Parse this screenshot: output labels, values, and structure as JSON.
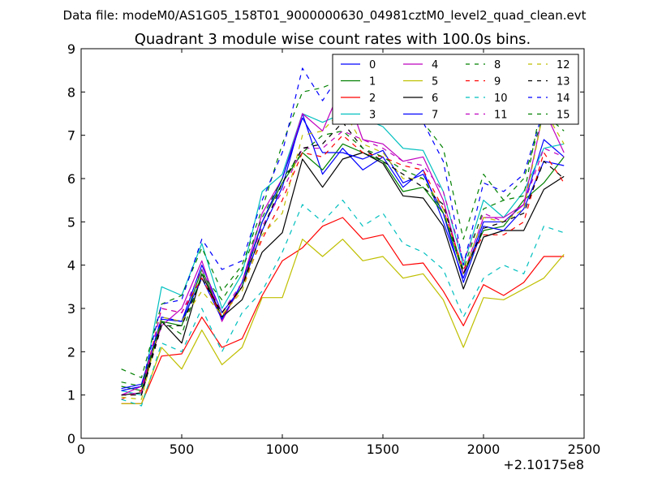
{
  "suptitle": "Data file: modeM0/AS1G05_158T01_9000000630_04981cztM0_level2_quad_clean.evt",
  "chart_data": {
    "type": "line",
    "title": "Quadrant 3 module wise count rates with 100.0s bins.",
    "xlabel": "",
    "ylabel": "",
    "x_offset_label": "+2.10175e8",
    "xlim": [
      0,
      2500
    ],
    "ylim": [
      0,
      9
    ],
    "x_ticks": [
      0,
      500,
      1000,
      1500,
      2000,
      2500
    ],
    "y_ticks": [
      0,
      1,
      2,
      3,
      4,
      5,
      6,
      7,
      8,
      9
    ],
    "x_tick_labels": [
      "0",
      "500",
      "1000",
      "1500",
      "2000",
      "2500"
    ],
    "y_tick_labels": [
      "0",
      "1",
      "2",
      "3",
      "4",
      "5",
      "6",
      "7",
      "8",
      "9"
    ],
    "legend_position": "top-right",
    "legend_columns": 4,
    "x": [
      200,
      300,
      400,
      500,
      600,
      700,
      800,
      900,
      1000,
      1100,
      1200,
      1300,
      1400,
      1500,
      1600,
      1700,
      1800,
      1900,
      2000,
      2100,
      2200,
      2300,
      2400
    ],
    "series": [
      {
        "name": "0",
        "color": "#0000ff",
        "dash": "solid",
        "values": [
          1.1,
          1.2,
          2.8,
          2.7,
          4.0,
          2.9,
          3.5,
          4.8,
          5.8,
          7.5,
          6.1,
          6.7,
          6.2,
          6.5,
          5.8,
          6.2,
          5.0,
          3.7,
          5.0,
          5.0,
          5.4,
          6.9,
          6.5
        ]
      },
      {
        "name": "1",
        "color": "#008000",
        "dash": "solid",
        "values": [
          1.2,
          1.1,
          2.7,
          2.6,
          3.9,
          2.8,
          3.5,
          5.0,
          5.9,
          6.6,
          6.2,
          6.8,
          6.6,
          6.4,
          5.7,
          5.8,
          5.2,
          3.8,
          4.8,
          4.9,
          5.5,
          5.9,
          6.5
        ]
      },
      {
        "name": "2",
        "color": "#ff0000",
        "dash": "solid",
        "values": [
          0.8,
          0.8,
          1.9,
          1.95,
          2.8,
          2.1,
          2.3,
          3.3,
          4.1,
          4.4,
          4.9,
          5.1,
          4.6,
          4.7,
          4.0,
          4.05,
          3.4,
          2.6,
          3.55,
          3.3,
          3.6,
          4.2,
          4.2
        ]
      },
      {
        "name": "3",
        "color": "#00bfbf",
        "dash": "solid",
        "values": [
          1.1,
          1.0,
          3.5,
          3.3,
          4.5,
          3.0,
          3.8,
          5.7,
          6.1,
          7.5,
          7.3,
          7.5,
          7.4,
          7.2,
          6.7,
          6.65,
          5.7,
          4.0,
          5.5,
          5.1,
          5.7,
          6.7,
          6.8
        ]
      },
      {
        "name": "4",
        "color": "#bf00bf",
        "dash": "solid",
        "values": [
          1.0,
          1.2,
          2.6,
          3.0,
          4.1,
          2.7,
          3.6,
          5.2,
          6.0,
          7.5,
          7.1,
          8.2,
          6.9,
          6.8,
          6.4,
          6.5,
          5.5,
          3.8,
          5.1,
          5.1,
          5.4,
          7.6,
          6.6
        ]
      },
      {
        "name": "5",
        "color": "#bfbf00",
        "dash": "solid",
        "values": [
          0.8,
          0.8,
          2.1,
          1.6,
          2.5,
          1.7,
          2.1,
          3.25,
          3.25,
          4.6,
          4.2,
          4.6,
          4.1,
          4.2,
          3.7,
          3.8,
          3.2,
          2.1,
          3.25,
          3.2,
          3.45,
          3.7,
          4.25
        ]
      },
      {
        "name": "6",
        "color": "#000000",
        "dash": "solid",
        "values": [
          1.0,
          1.05,
          2.7,
          2.2,
          3.8,
          2.8,
          3.2,
          4.3,
          4.75,
          6.45,
          5.8,
          6.45,
          6.6,
          6.35,
          5.6,
          5.55,
          4.9,
          3.45,
          4.65,
          4.8,
          4.8,
          5.75,
          6.05
        ]
      },
      {
        "name": "7",
        "color": "#0000ff",
        "dash": "solid",
        "values": [
          1.15,
          1.25,
          2.75,
          2.7,
          3.7,
          2.75,
          3.6,
          5.0,
          6.0,
          7.4,
          6.6,
          6.6,
          6.45,
          6.65,
          5.9,
          6.1,
          5.2,
          3.6,
          4.9,
          4.8,
          5.3,
          6.4,
          6.3
        ]
      },
      {
        "name": "8",
        "color": "#008000",
        "dash": "dashed",
        "values": [
          1.6,
          1.4,
          3.1,
          3.3,
          4.4,
          3.4,
          4.0,
          5.3,
          6.8,
          8.0,
          8.1,
          8.3,
          7.6,
          7.5,
          7.4,
          7.3,
          6.7,
          4.6,
          6.1,
          5.5,
          6.0,
          7.5,
          7.1
        ]
      },
      {
        "name": "9",
        "color": "#ff0000",
        "dash": "dashed",
        "values": [
          0.9,
          1.1,
          3.0,
          2.9,
          3.7,
          2.8,
          3.5,
          4.6,
          5.5,
          6.6,
          6.5,
          7.0,
          6.6,
          6.5,
          6.3,
          6.2,
          5.3,
          3.9,
          4.7,
          4.7,
          5.0,
          6.6,
          5.9
        ]
      },
      {
        "name": "10",
        "color": "#00bfbf",
        "dash": "dashed",
        "values": [
          0.9,
          0.75,
          2.2,
          2.0,
          3.0,
          2.0,
          2.9,
          3.4,
          4.3,
          5.4,
          5.0,
          5.5,
          4.9,
          5.2,
          4.5,
          4.3,
          3.9,
          2.8,
          3.7,
          4.0,
          3.8,
          4.9,
          4.75
        ]
      },
      {
        "name": "11",
        "color": "#bf00bf",
        "dash": "dashed",
        "values": [
          1.0,
          1.05,
          3.0,
          2.9,
          3.9,
          2.9,
          3.6,
          4.9,
          5.7,
          6.7,
          6.7,
          7.1,
          6.9,
          6.7,
          6.4,
          6.3,
          5.7,
          4.1,
          5.2,
          5.0,
          5.4,
          6.7,
          6.5
        ]
      },
      {
        "name": "12",
        "color": "#bfbf00",
        "dash": "dashed",
        "values": [
          0.95,
          0.9,
          2.8,
          2.7,
          3.4,
          2.85,
          3.4,
          4.7,
          5.2,
          7.0,
          7.1,
          7.6,
          6.8,
          6.6,
          6.0,
          6.0,
          5.3,
          3.8,
          5.1,
          5.0,
          5.3,
          7.6,
          6.8
        ]
      },
      {
        "name": "13",
        "color": "#000000",
        "dash": "dashed",
        "values": [
          1.0,
          1.0,
          2.6,
          2.6,
          3.7,
          2.9,
          3.5,
          4.8,
          5.9,
          6.7,
          6.8,
          7.3,
          6.7,
          6.4,
          6.1,
          5.8,
          5.4,
          3.8,
          4.85,
          5.0,
          5.2,
          6.4,
          6.0
        ]
      },
      {
        "name": "14",
        "color": "#0000ff",
        "dash": "dashed",
        "values": [
          1.1,
          1.2,
          3.1,
          3.2,
          4.6,
          3.9,
          4.1,
          5.5,
          6.6,
          8.55,
          7.8,
          8.5,
          8.0,
          7.8,
          7.5,
          7.3,
          6.4,
          4.0,
          5.9,
          5.7,
          6.1,
          7.6,
          7.6
        ]
      },
      {
        "name": "15",
        "color": "#008000",
        "dash": "dashed",
        "values": [
          1.3,
          1.2,
          2.7,
          2.4,
          3.8,
          3.2,
          3.9,
          5.1,
          6.0,
          6.6,
          7.0,
          7.1,
          6.7,
          6.5,
          6.2,
          6.0,
          5.2,
          3.9,
          5.3,
          5.5,
          5.6,
          8.0,
          7.3
        ]
      }
    ]
  }
}
